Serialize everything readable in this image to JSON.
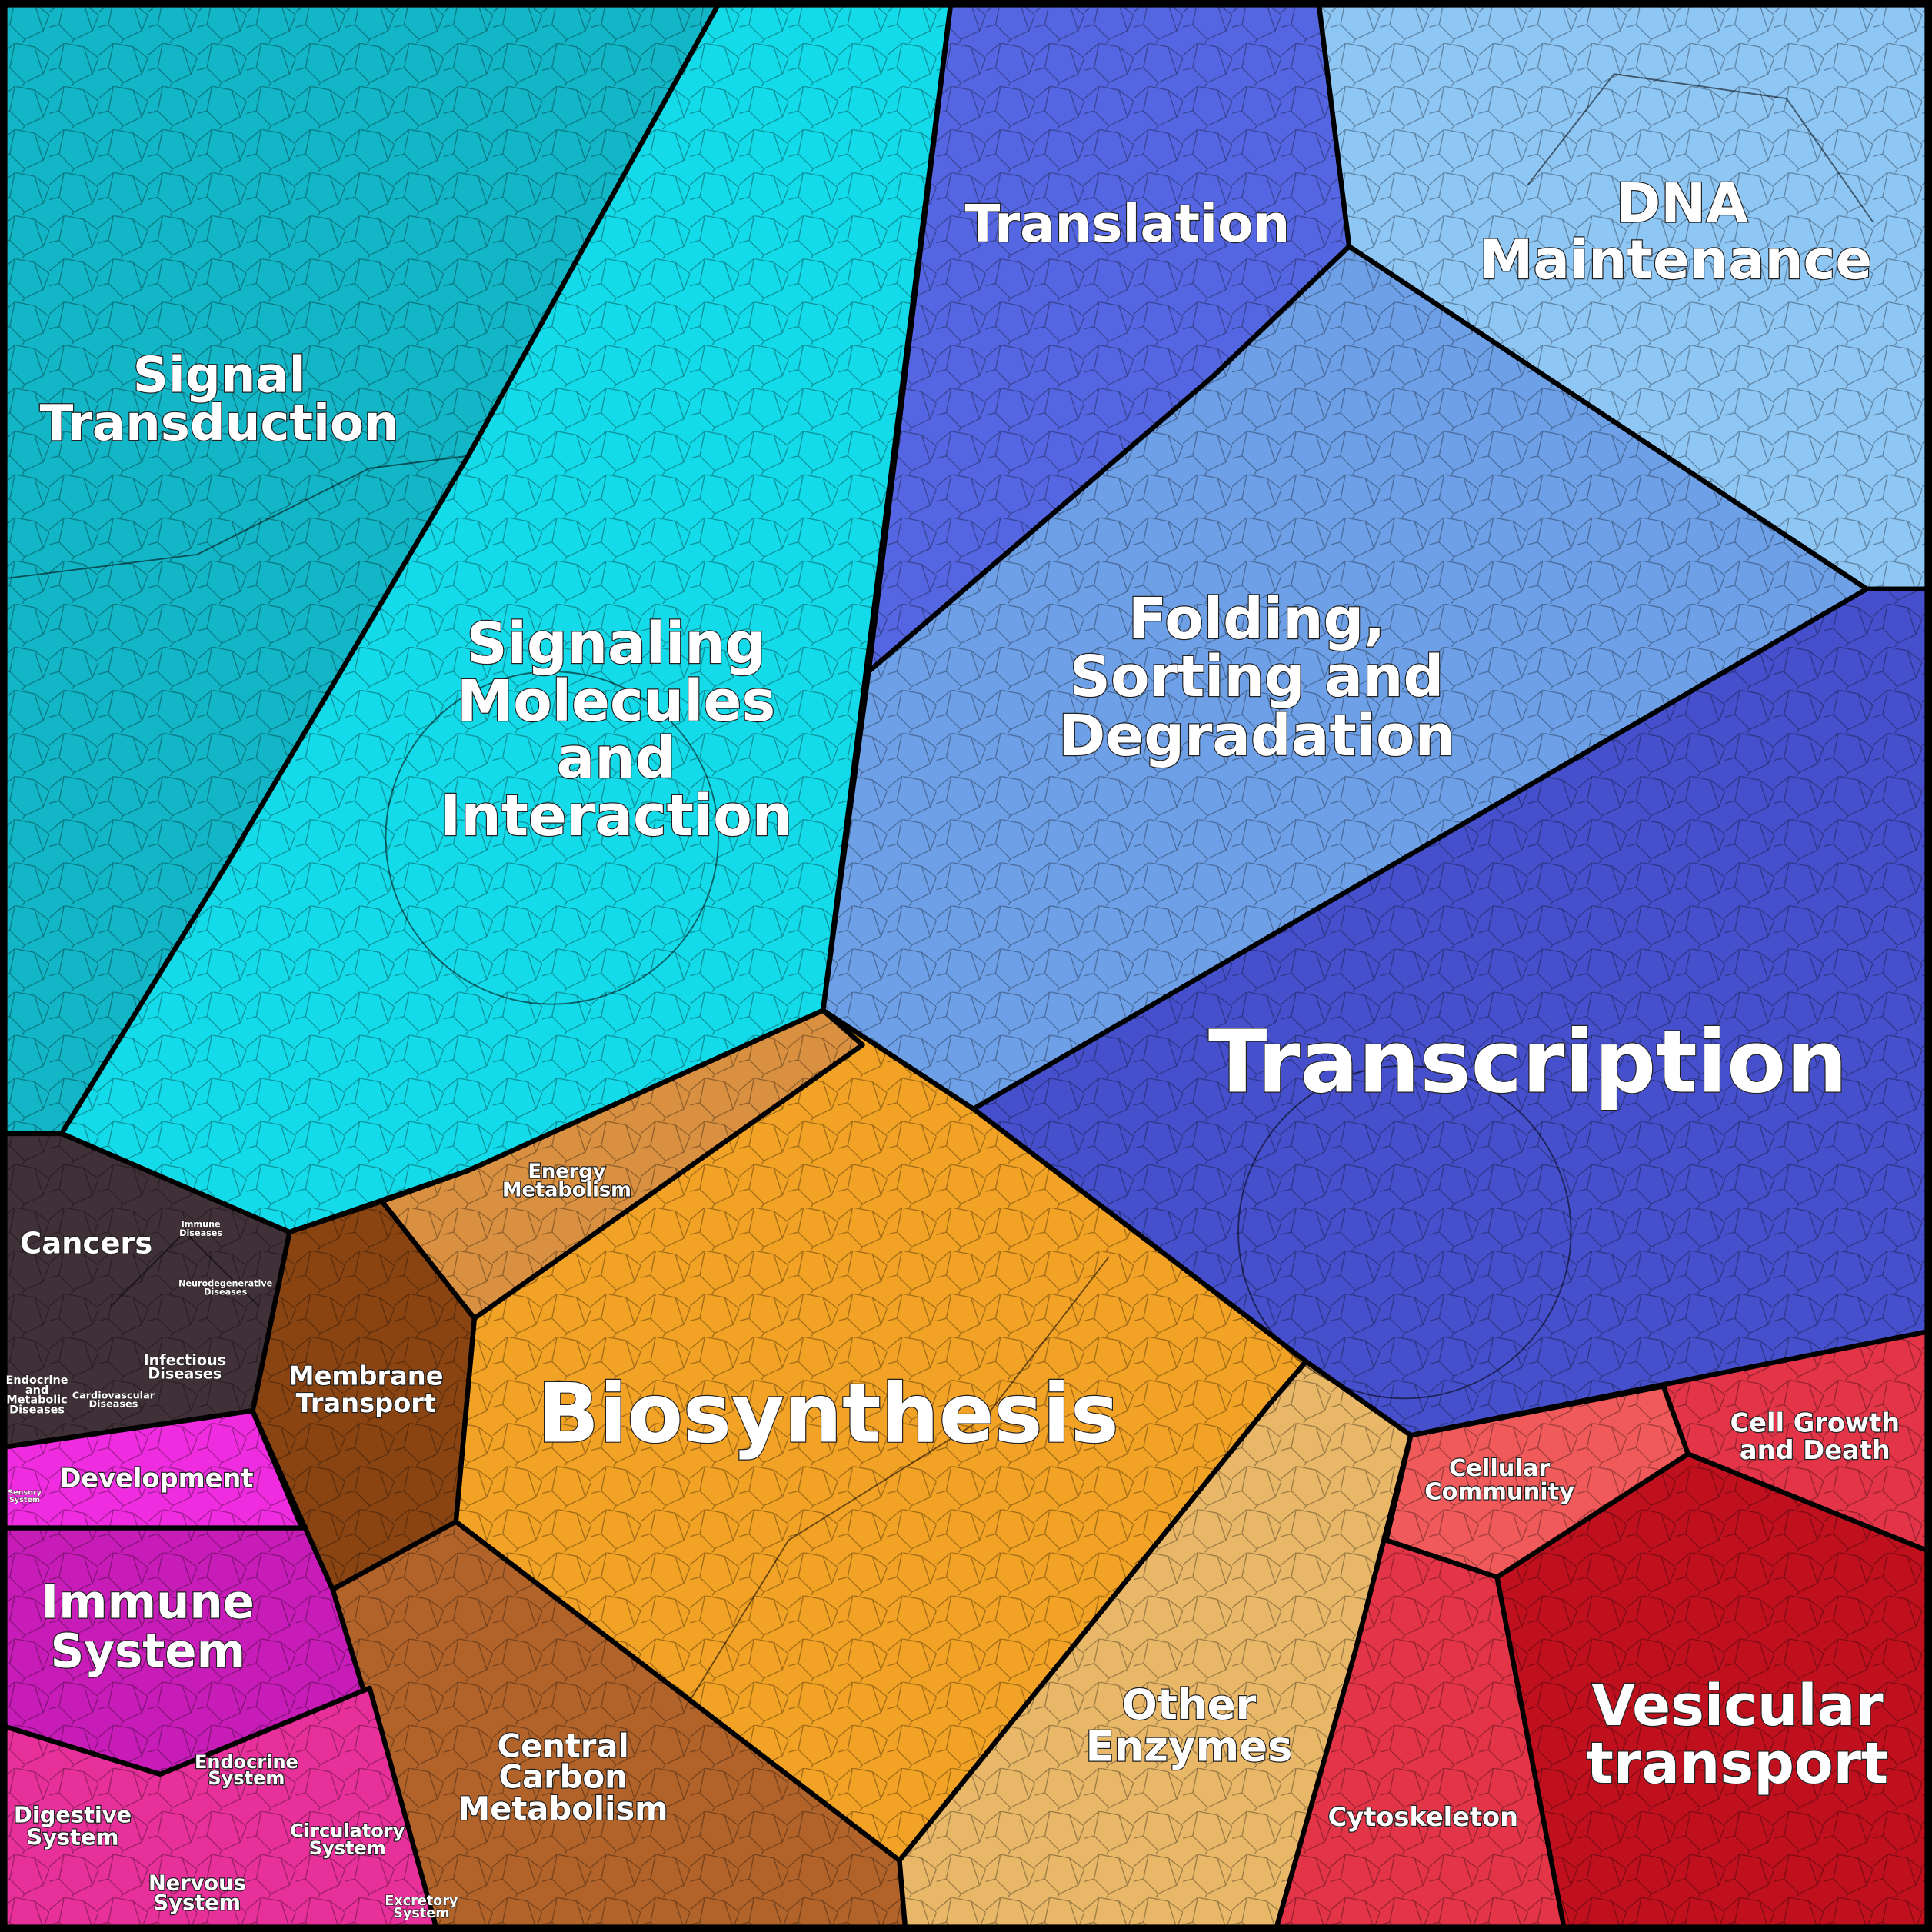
{
  "regions": [
    {
      "label": [
        "Signal",
        "Transduction"
      ]
    },
    {
      "label": [
        "Signaling",
        "Molecules",
        "and",
        "Interaction"
      ]
    },
    {
      "label": [
        "Translation"
      ]
    },
    {
      "label": [
        "DNA",
        "Maintenance"
      ]
    },
    {
      "label": [
        "Folding,",
        "Sorting and",
        "Degradation"
      ]
    },
    {
      "label": [
        "Transcription"
      ]
    },
    {
      "label": [
        "Biosynthesis"
      ]
    },
    {
      "label": [
        "Energy",
        "Metabolism"
      ]
    },
    {
      "label": [
        "Membrane",
        "Transport"
      ]
    },
    {
      "label": [
        "Central",
        "Carbon",
        "Metabolism"
      ]
    },
    {
      "label": [
        "Other",
        "Enzymes"
      ]
    },
    {
      "label": [
        "Cellular",
        "Community"
      ]
    },
    {
      "label": [
        "Cell Growth",
        "and Death"
      ]
    },
    {
      "label": [
        "Vesicular",
        "transport"
      ]
    },
    {
      "label": [
        "Cytoskeleton"
      ]
    },
    {
      "label": [
        "Cancers"
      ]
    },
    {
      "label": [
        "Immune",
        "Diseases"
      ]
    },
    {
      "label": [
        "Neurodegenerative",
        "Diseases"
      ]
    },
    {
      "label": [
        "Infectious",
        "Diseases"
      ]
    },
    {
      "label": [
        "Endocrine",
        "and",
        "Metabolic",
        "Diseases"
      ]
    },
    {
      "label": [
        "Cardiovascular",
        "Diseases"
      ]
    },
    {
      "label": [
        "Development"
      ]
    },
    {
      "label": [
        "Sensory",
        "System"
      ]
    },
    {
      "label": [
        "Immune",
        "System"
      ]
    },
    {
      "label": [
        "Endocrine",
        "System"
      ]
    },
    {
      "label": [
        "Digestive",
        "System"
      ]
    },
    {
      "label": [
        "Circulatory",
        "System"
      ]
    },
    {
      "label": [
        "Nervous",
        "System"
      ]
    },
    {
      "label": [
        "Excretory",
        "System"
      ]
    }
  ]
}
